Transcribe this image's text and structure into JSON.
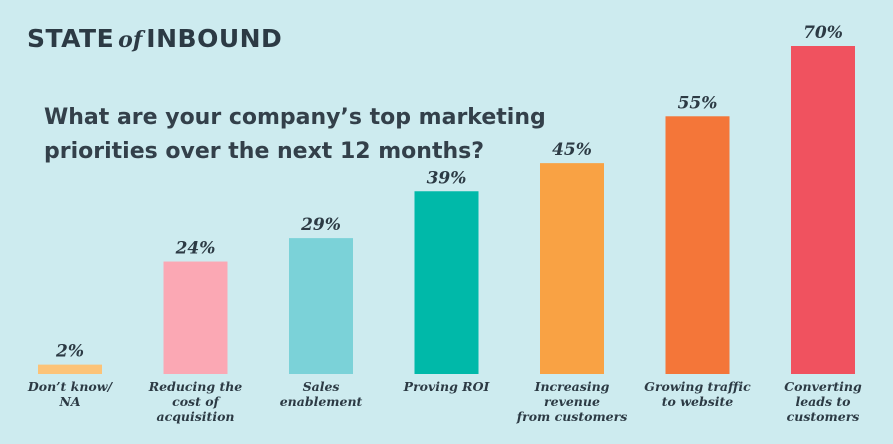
{
  "header": {
    "brand_left": "STATE",
    "brand_of": "of",
    "brand_right": "INBOUND"
  },
  "question": "What are your company’s top marketing priorities over the next 12 months?",
  "chart_data": {
    "type": "bar",
    "categories": [
      [
        "Don’t know/",
        "NA"
      ],
      [
        "Reducing the",
        "cost of",
        "acquisition"
      ],
      [
        "Sales",
        "enablement"
      ],
      [
        "Proving ROI"
      ],
      [
        "Increasing",
        "revenue",
        "from customers"
      ],
      [
        "Growing traffic",
        "to website"
      ],
      [
        "Converting",
        "leads to",
        "customers"
      ]
    ],
    "values": [
      2,
      24,
      29,
      39,
      45,
      55,
      70
    ],
    "value_labels": [
      "2%",
      "24%",
      "29%",
      "39%",
      "45%",
      "55%",
      "70%"
    ],
    "colors": [
      "#fcc378",
      "#fba8b4",
      "#7bd2d8",
      "#00b9a9",
      "#f9a244",
      "#f47639",
      "#f0525f"
    ],
    "unit": "%",
    "ylim": [
      0,
      70
    ],
    "grid": false,
    "legend": "none"
  }
}
